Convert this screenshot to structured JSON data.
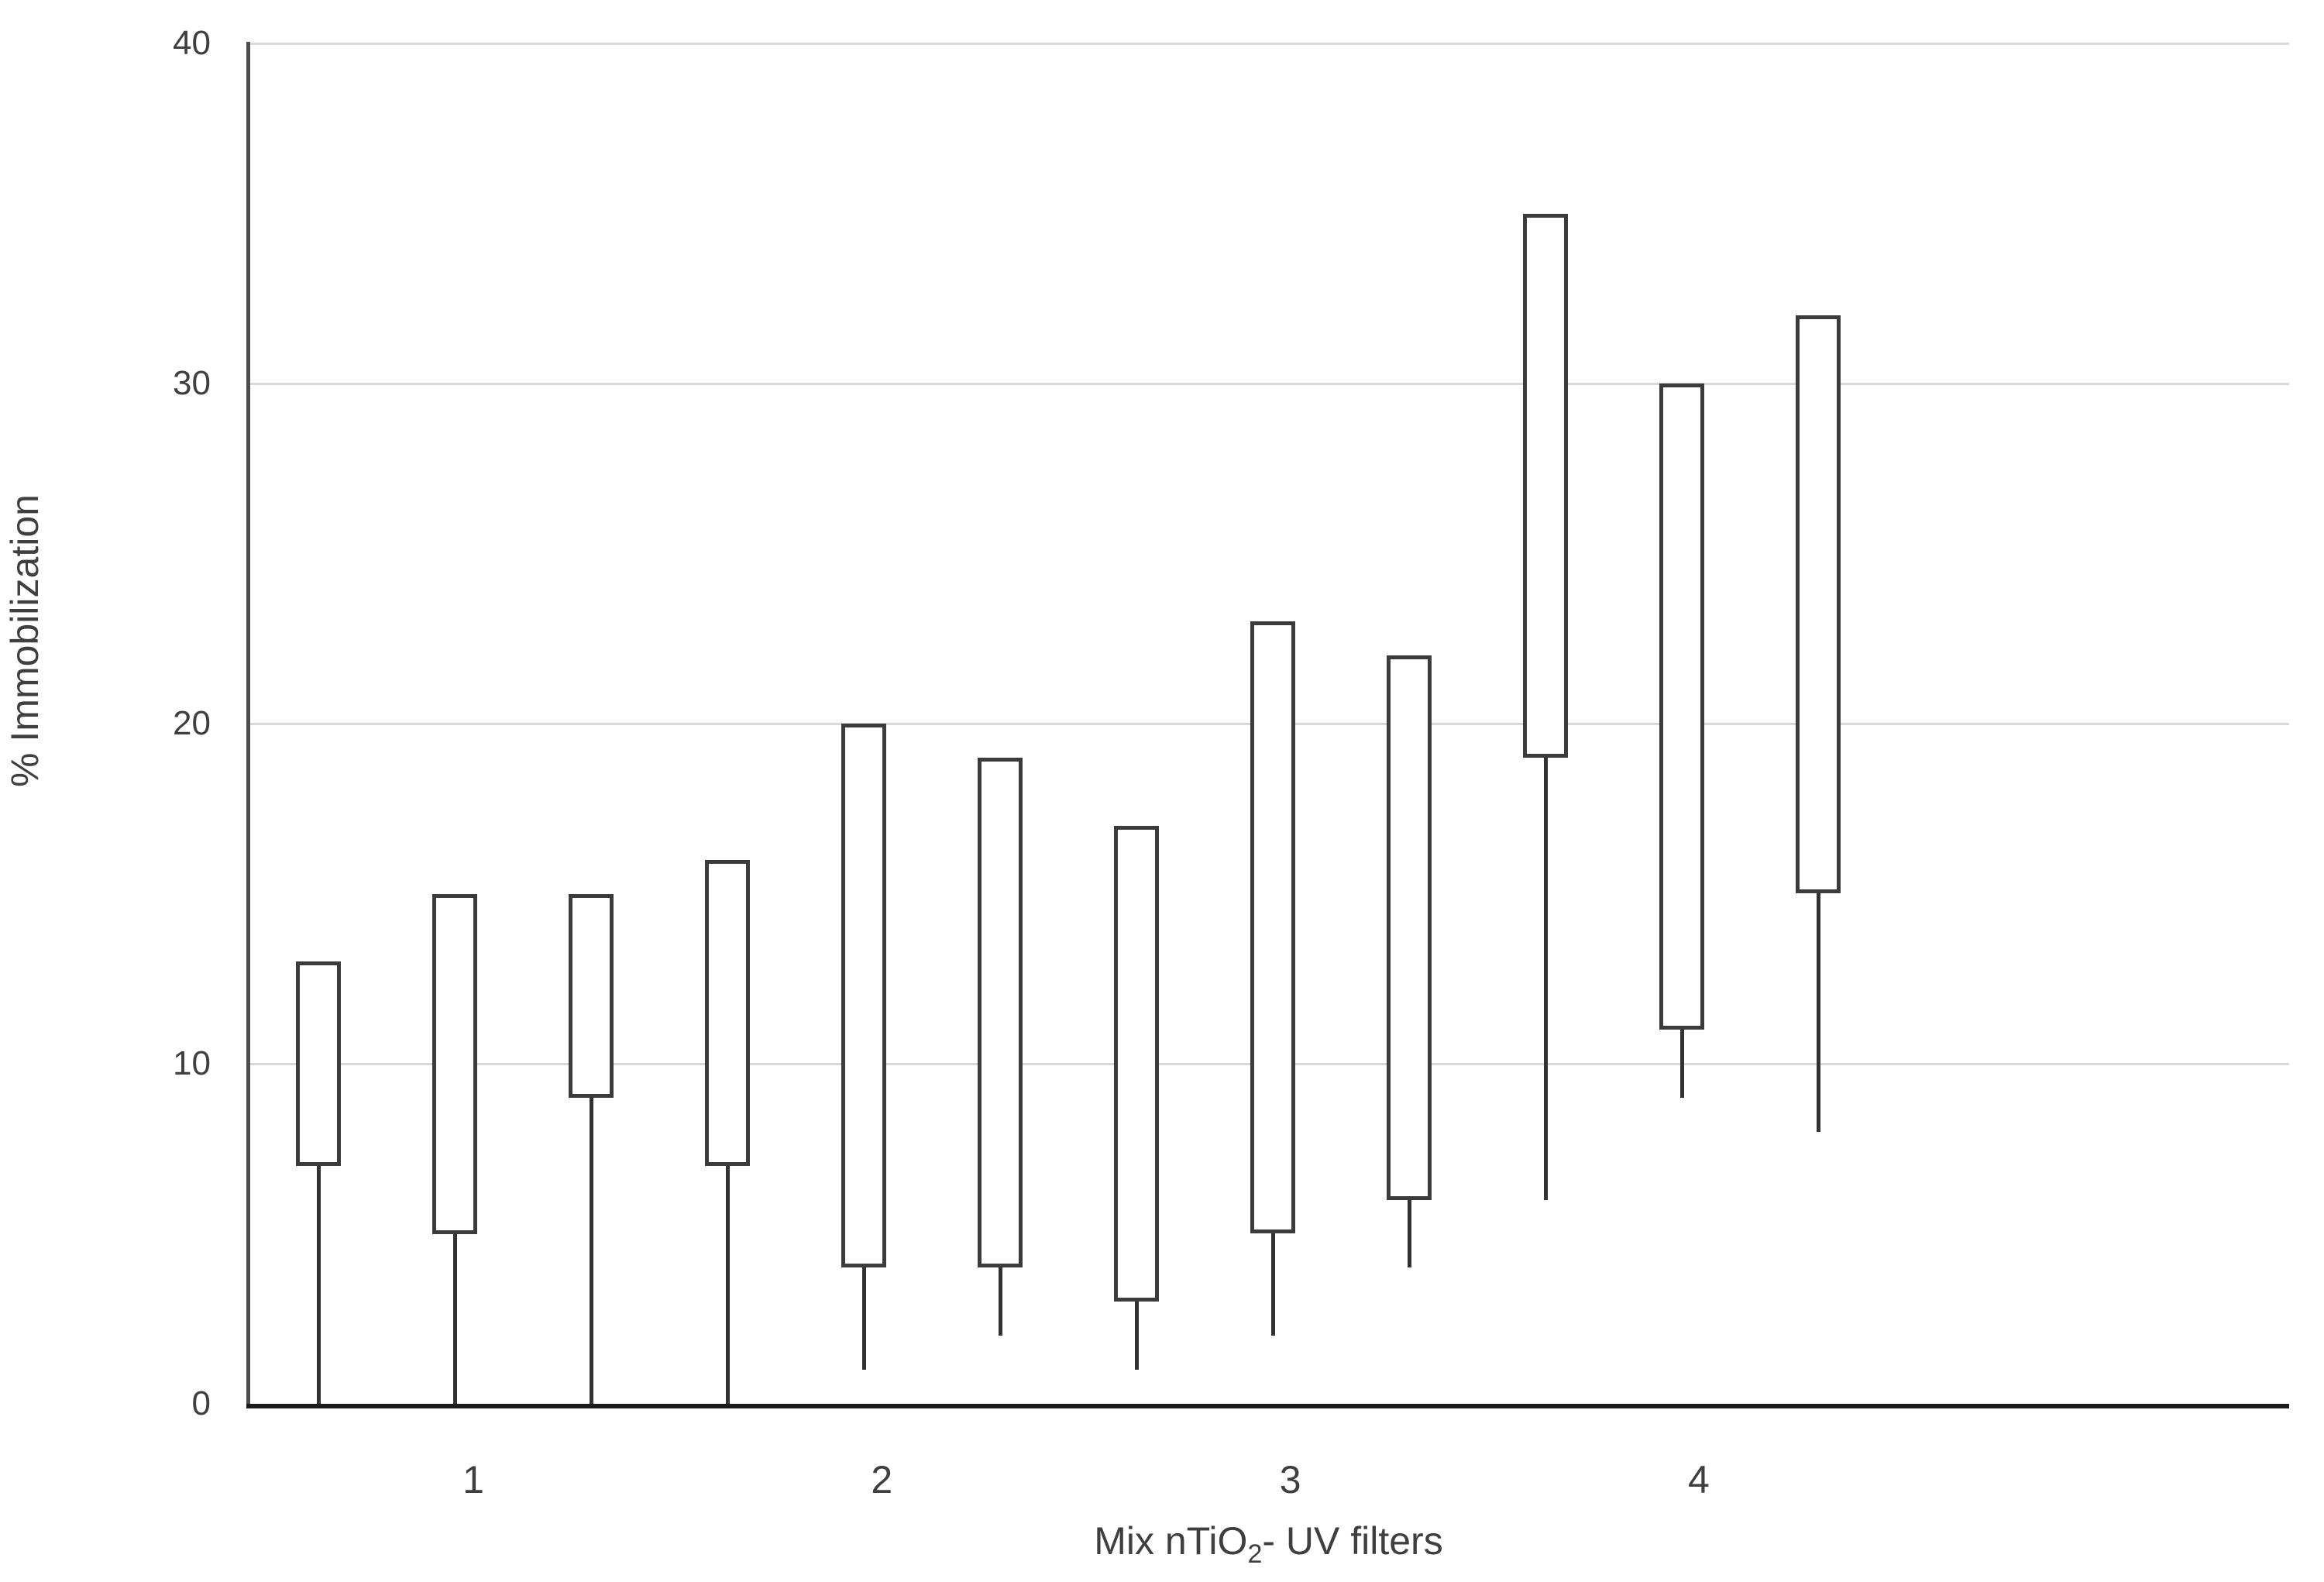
{
  "chart_data": {
    "type": "bar",
    "subtype": "floating-range-bars-with-lower-whiskers",
    "title": "",
    "xlabel": "Mix nTiO2- UV filters",
    "xlabel_parts": {
      "prefix": "Mix nTiO",
      "subscript": "2",
      "suffix": "- UV filters"
    },
    "ylabel": "% Immobilization",
    "ylim": [
      0,
      40
    ],
    "yticks": [
      0,
      10,
      20,
      30,
      40
    ],
    "xtick_labels": [
      "1",
      "2",
      "3",
      "4"
    ],
    "grid": "horizontal-light-gray",
    "legend": "none",
    "bar_fill": "white",
    "note": "12 evenly spaced open bars, 3 per mix; each bar spans low-high (% immobilization range) with a whisker extending down to whisker_low",
    "groups": [
      {
        "mix": "1",
        "bars": [
          {
            "high": 13,
            "low": 7,
            "whisker_low": 0
          },
          {
            "high": 15,
            "low": 5,
            "whisker_low": 0
          },
          {
            "high": 15,
            "low": 9,
            "whisker_low": 0
          }
        ]
      },
      {
        "mix": "2",
        "bars": [
          {
            "high": 16,
            "low": 7,
            "whisker_low": 0
          },
          {
            "high": 20,
            "low": 4,
            "whisker_low": 1
          },
          {
            "high": 19,
            "low": 4,
            "whisker_low": 2
          }
        ]
      },
      {
        "mix": "3",
        "bars": [
          {
            "high": 17,
            "low": 3,
            "whisker_low": 1
          },
          {
            "high": 23,
            "low": 5,
            "whisker_low": 2
          },
          {
            "high": 22,
            "low": 6,
            "whisker_low": 4
          }
        ]
      },
      {
        "mix": "4",
        "bars": [
          {
            "high": 35,
            "low": 19,
            "whisker_low": 6
          },
          {
            "high": 30,
            "low": 11,
            "whisker_low": 9
          },
          {
            "high": 32,
            "low": 15,
            "whisker_low": 8
          }
        ]
      }
    ]
  },
  "colors": {
    "background": "#ffffff",
    "gridline": "#d9d9d9",
    "bar_border": "#3b3b3b",
    "whisker": "#333333",
    "axis_line": "#4d4d4d",
    "baseline": "#1a1a1a",
    "text": "#3f3f3f"
  }
}
